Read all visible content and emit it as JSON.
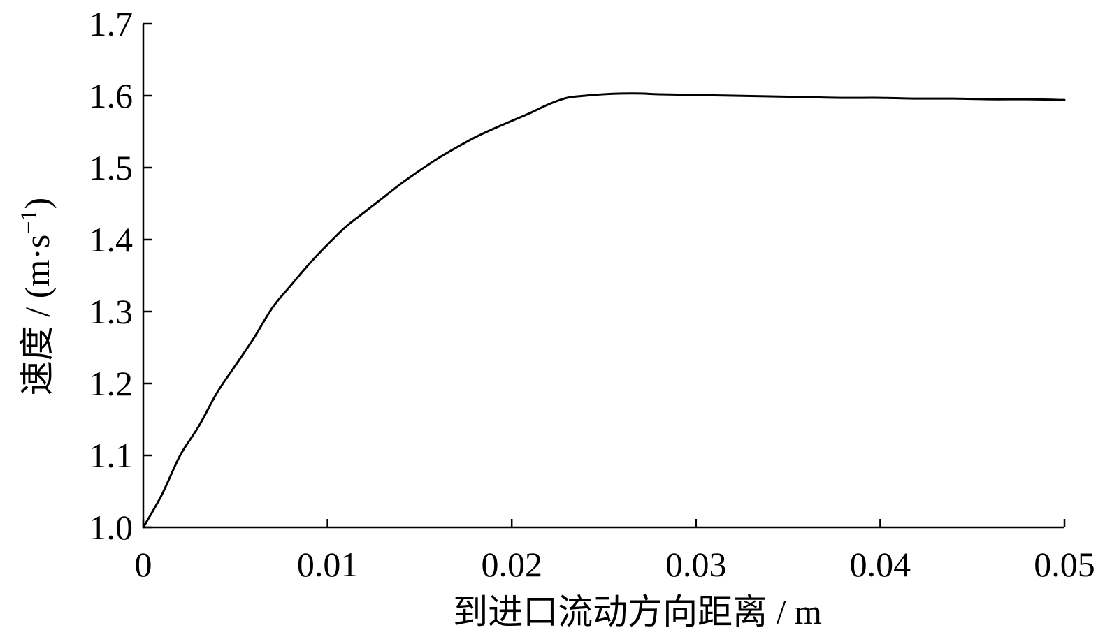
{
  "chart_data": {
    "type": "line",
    "xlabel": "到进口流动方向距离 / m",
    "ylabel_main": "速度 / (m·s",
    "ylabel_sup": "−1",
    "ylabel_close": ")",
    "xlim": [
      0,
      0.05
    ],
    "ylim": [
      1.0,
      1.7
    ],
    "x_ticks": [
      0,
      0.01,
      0.02,
      0.03,
      0.04,
      0.05
    ],
    "x_tick_labels": [
      "0",
      "0.01",
      "0.02",
      "0.03",
      "0.04",
      "0.05"
    ],
    "y_ticks": [
      1.0,
      1.1,
      1.2,
      1.3,
      1.4,
      1.5,
      1.6,
      1.7
    ],
    "y_tick_labels": [
      "1.0",
      "1.1",
      "1.2",
      "1.3",
      "1.4",
      "1.5",
      "1.6",
      "1.7"
    ],
    "grid": false,
    "series": [
      {
        "x": [
          0,
          0.001,
          0.002,
          0.003,
          0.004,
          0.005,
          0.006,
          0.007,
          0.008,
          0.009,
          0.01,
          0.011,
          0.012,
          0.013,
          0.014,
          0.015,
          0.016,
          0.017,
          0.018,
          0.019,
          0.02,
          0.021,
          0.022,
          0.023,
          0.024,
          0.025,
          0.026,
          0.027,
          0.028,
          0.03,
          0.032,
          0.034,
          0.036,
          0.038,
          0.04,
          0.042,
          0.044,
          0.046,
          0.048,
          0.05
        ],
        "y": [
          1.0,
          1.045,
          1.1,
          1.14,
          1.187,
          1.225,
          1.263,
          1.305,
          1.336,
          1.366,
          1.393,
          1.418,
          1.438,
          1.458,
          1.478,
          1.496,
          1.513,
          1.528,
          1.542,
          1.554,
          1.565,
          1.576,
          1.588,
          1.597,
          1.6,
          1.602,
          1.603,
          1.603,
          1.602,
          1.601,
          1.6,
          1.599,
          1.598,
          1.597,
          1.597,
          1.596,
          1.596,
          1.595,
          1.595,
          1.594
        ]
      }
    ]
  }
}
